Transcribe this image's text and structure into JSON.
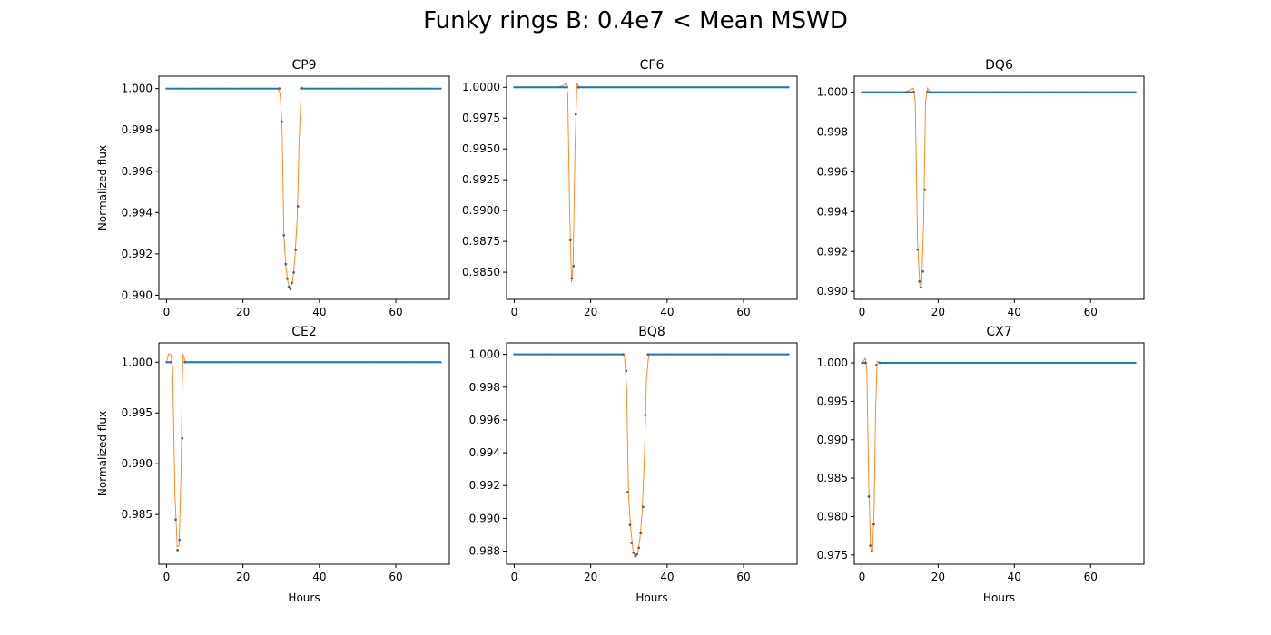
{
  "figure": {
    "title": "Funky rings B: 0.4e7 < Mean MSWD"
  },
  "colors": {
    "points": "#1f77b4",
    "model": "#ff7f0e",
    "axes": "#000000"
  },
  "chart_data": [
    {
      "type": "scatter",
      "title": "CP9",
      "xlabel": "",
      "ylabel": "Normalized flux",
      "xlim": [
        -2,
        74
      ],
      "ylim": [
        0.9898,
        1.0006
      ],
      "xticks": [
        0,
        20,
        40,
        60
      ],
      "yticks": [
        "0.990",
        "0.992",
        "0.994",
        "0.996",
        "0.998",
        "1.000"
      ],
      "transit": [
        [
          29.5,
          1.0
        ],
        [
          30.2,
          0.9984
        ],
        [
          30.7,
          0.9929
        ],
        [
          31.2,
          0.9915
        ],
        [
          31.6,
          0.9908
        ],
        [
          32.0,
          0.9904
        ],
        [
          32.4,
          0.9903
        ],
        [
          32.8,
          0.9906
        ],
        [
          33.3,
          0.9911
        ],
        [
          33.8,
          0.9922
        ],
        [
          34.4,
          0.9943
        ],
        [
          35.2,
          1.0
        ]
      ],
      "model": [
        [
          29.0,
          1.0
        ],
        [
          29.7,
          0.9998
        ],
        [
          30.2,
          0.9984
        ],
        [
          30.7,
          0.993
        ],
        [
          31.2,
          0.9914
        ],
        [
          31.8,
          0.9906
        ],
        [
          32.4,
          0.9903
        ],
        [
          33.0,
          0.9907
        ],
        [
          33.6,
          0.9918
        ],
        [
          34.2,
          0.9938
        ],
        [
          34.7,
          0.9975
        ],
        [
          35.3,
          1.0001
        ],
        [
          36.0,
          1.0
        ]
      ],
      "x_end": 72
    },
    {
      "type": "scatter",
      "title": "CF6",
      "xlabel": "",
      "ylabel": "",
      "xlim": [
        -2,
        74
      ],
      "ylim": [
        0.9828,
        1.0009
      ],
      "xticks": [
        0,
        20,
        40,
        60
      ],
      "yticks": [
        "0.9850",
        "0.9875",
        "0.9900",
        "0.9925",
        "0.9950",
        "0.9975",
        "1.0000"
      ],
      "transit": [
        [
          13.8,
          1.0
        ],
        [
          14.7,
          0.9876
        ],
        [
          15.1,
          0.9845
        ],
        [
          15.5,
          0.9855
        ],
        [
          16.1,
          0.9978
        ],
        [
          16.8,
          1.0
        ]
      ],
      "model": [
        [
          11.0,
          1.0
        ],
        [
          12.5,
          1.0001
        ],
        [
          13.5,
          1.0003
        ],
        [
          14.0,
          0.9995
        ],
        [
          14.5,
          0.99
        ],
        [
          15.0,
          0.9842
        ],
        [
          15.4,
          0.9855
        ],
        [
          15.9,
          0.995
        ],
        [
          16.4,
          1.0003
        ],
        [
          17.2,
          1.0
        ]
      ],
      "x_end": 72
    },
    {
      "type": "scatter",
      "title": "DQ6",
      "xlabel": "",
      "ylabel": "",
      "xlim": [
        -2,
        74
      ],
      "ylim": [
        0.9896,
        1.0008
      ],
      "xticks": [
        0,
        20,
        40,
        60
      ],
      "yticks": [
        "0.990",
        "0.992",
        "0.994",
        "0.996",
        "0.998",
        "1.000"
      ],
      "transit": [
        [
          13.6,
          1.0
        ],
        [
          14.6,
          0.9921
        ],
        [
          15.1,
          0.9905
        ],
        [
          15.5,
          0.9902
        ],
        [
          16.0,
          0.991
        ],
        [
          16.5,
          0.9951
        ],
        [
          17.2,
          1.0
        ]
      ],
      "model": [
        [
          11.0,
          1.0
        ],
        [
          12.5,
          1.0001
        ],
        [
          13.5,
          1.0002
        ],
        [
          14.0,
          0.9995
        ],
        [
          14.6,
          0.9925
        ],
        [
          15.2,
          0.9903
        ],
        [
          15.7,
          0.9904
        ],
        [
          16.2,
          0.9935
        ],
        [
          16.7,
          0.9995
        ],
        [
          17.2,
          1.0002
        ],
        [
          18.0,
          1.0
        ]
      ],
      "x_end": 72
    },
    {
      "type": "scatter",
      "title": "CE2",
      "xlabel": "Hours",
      "ylabel": "Normalized flux",
      "xlim": [
        -2,
        74
      ],
      "ylim": [
        0.9801,
        1.0019
      ],
      "xticks": [
        0,
        20,
        40,
        60
      ],
      "yticks": [
        "0.985",
        "0.990",
        "0.995",
        "1.000"
      ],
      "transit": [
        [
          1.2,
          1.0
        ],
        [
          2.4,
          0.9845
        ],
        [
          2.9,
          0.9815
        ],
        [
          3.4,
          0.9825
        ],
        [
          4.1,
          0.9925
        ],
        [
          4.8,
          1.0
        ]
      ],
      "model": [
        [
          0.0,
          1.0
        ],
        [
          0.5,
          1.0008
        ],
        [
          1.1,
          1.0008
        ],
        [
          1.6,
          0.9995
        ],
        [
          2.2,
          0.987
        ],
        [
          2.8,
          0.9818
        ],
        [
          3.3,
          0.982
        ],
        [
          3.8,
          0.989
        ],
        [
          4.1,
          0.9975
        ],
        [
          4.3,
          1.0008
        ],
        [
          4.7,
          1.0003
        ],
        [
          5.2,
          1.0
        ]
      ],
      "x_end": 72
    },
    {
      "type": "scatter",
      "title": "BQ8",
      "xlabel": "Hours",
      "ylabel": "",
      "xlim": [
        -2,
        74
      ],
      "ylim": [
        0.9872,
        1.0007
      ],
      "xticks": [
        0,
        20,
        40,
        60
      ],
      "yticks": [
        "0.988",
        "0.990",
        "0.992",
        "0.994",
        "0.996",
        "0.998",
        "1.000"
      ],
      "transit": [
        [
          28.5,
          1.0
        ],
        [
          29.3,
          0.999
        ],
        [
          29.7,
          0.9916
        ],
        [
          30.3,
          0.9896
        ],
        [
          30.7,
          0.9885
        ],
        [
          31.2,
          0.9879
        ],
        [
          31.7,
          0.9877
        ],
        [
          32.1,
          0.9878
        ],
        [
          32.6,
          0.9882
        ],
        [
          33.1,
          0.9891
        ],
        [
          33.7,
          0.9907
        ],
        [
          34.3,
          0.9963
        ],
        [
          35.0,
          1.0
        ]
      ],
      "model": [
        [
          28.0,
          1.0
        ],
        [
          28.8,
          1.0
        ],
        [
          29.4,
          0.998
        ],
        [
          29.9,
          0.9915
        ],
        [
          30.5,
          0.9893
        ],
        [
          31.1,
          0.988
        ],
        [
          31.7,
          0.9876
        ],
        [
          32.3,
          0.9878
        ],
        [
          32.9,
          0.9888
        ],
        [
          33.5,
          0.9905
        ],
        [
          34.1,
          0.994
        ],
        [
          34.6,
          0.9985
        ],
        [
          35.2,
          1.0
        ],
        [
          36.0,
          1.0
        ]
      ],
      "x_end": 72
    },
    {
      "type": "scatter",
      "title": "CX7",
      "xlabel": "Hours",
      "ylabel": "",
      "xlim": [
        -2,
        74
      ],
      "ylim": [
        0.9738,
        1.0026
      ],
      "xticks": [
        0,
        20,
        40,
        60
      ],
      "yticks": [
        "0.975",
        "0.980",
        "0.985",
        "0.990",
        "0.995",
        "1.000"
      ],
      "transit": [
        [
          1.0,
          1.0
        ],
        [
          1.8,
          0.9826
        ],
        [
          2.2,
          0.9762
        ],
        [
          2.6,
          0.9755
        ],
        [
          3.1,
          0.979
        ],
        [
          3.8,
          0.9997
        ],
        [
          4.6,
          1.0
        ]
      ],
      "model": [
        [
          0.0,
          1.0
        ],
        [
          0.5,
          1.0003
        ],
        [
          0.9,
          1.0006
        ],
        [
          1.3,
          0.999
        ],
        [
          1.8,
          0.984
        ],
        [
          2.3,
          0.9758
        ],
        [
          2.8,
          0.9755
        ],
        [
          3.2,
          0.981
        ],
        [
          3.6,
          0.994
        ],
        [
          4.0,
          1.0002
        ],
        [
          4.6,
          1.0001
        ],
        [
          5.2,
          1.0
        ]
      ],
      "x_end": 72
    }
  ]
}
